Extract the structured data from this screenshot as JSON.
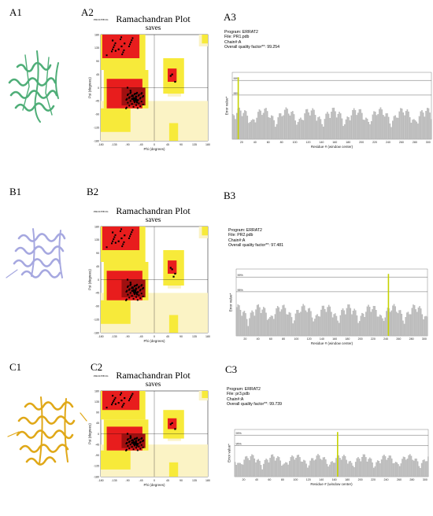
{
  "figure": {
    "rows": [
      {
        "protein_label": "A1",
        "rama_label": "A2",
        "errat_label": "A3",
        "protein_color": "#4fae78",
        "rama": {
          "procheck": "PROCHECK",
          "title": "Ramachandran Plot",
          "subtitle": "saves",
          "xlabel": "Phi (degrees)",
          "ylabel": "Psi (degrees)"
        },
        "errat": {
          "program": "Program: ERRAT2",
          "file": "File: PR1.pdb",
          "chain": "Chain#:A",
          "quality": "Overall quality factor**: 99.254",
          "ylabel": "Error value*",
          "xlabel": "Residue # (window center)",
          "level_high": "99%",
          "level_low": "95%"
        }
      },
      {
        "protein_label": "B1",
        "rama_label": "B2",
        "errat_label": "B3",
        "protein_color": "#a6a8e0",
        "rama": {
          "procheck": "PROCHECK",
          "title": "Ramachandran Plot",
          "subtitle": "saves",
          "xlabel": "Phi (degrees)",
          "ylabel": "Psi (degrees)"
        },
        "errat": {
          "program": "Program: ERRAT2",
          "file": "File: PR2.pdb",
          "chain": "Chain#:A",
          "quality": "Overall quality factor**: 97.481",
          "ylabel": "Error value*",
          "xlabel": "Residue # (window center)",
          "level_high": "99%",
          "level_low": "95%"
        }
      },
      {
        "protein_label": "C1",
        "rama_label": "C2",
        "errat_label": "C3",
        "protein_color": "#e0a818",
        "rama": {
          "procheck": "PROCHECK",
          "title": "Ramachandran Plot",
          "subtitle": "saves",
          "xlabel": "Phi (degrees)",
          "ylabel": "Psi (degrees)"
        },
        "errat": {
          "program": "Program: ERRAT2",
          "file": "File: pr3.pdb",
          "chain": "Chain#:A",
          "quality": "Overall quality factor**: 99.739",
          "ylabel": "Error value*",
          "xlabel": "Residue # (window center)",
          "level_high": "99%",
          "level_low": "95%"
        }
      }
    ]
  },
  "chart_data": [
    {
      "type": "scatter",
      "title": "Ramachandran Plot",
      "subtitle": "saves",
      "xlabel": "Phi (degrees)",
      "ylabel": "Psi (degrees)",
      "xlim": [
        -180,
        180
      ],
      "ylim": [
        -180,
        180
      ],
      "xticks": [
        -180,
        -135,
        -90,
        -45,
        0,
        45,
        90,
        135,
        180
      ],
      "yticks": [
        180,
        135,
        90,
        45,
        0,
        -45,
        -90,
        -135,
        -180
      ],
      "series": [
        {
          "x": [
            -65,
            -60,
            -70,
            -55,
            -75,
            -62,
            -58,
            -68,
            -64,
            -72,
            -120,
            -110,
            -130,
            -100,
            -140,
            -60,
            55,
            60,
            70,
            -80,
            -90,
            -66,
            -61,
            -63,
            -57
          ],
          "y": [
            -40,
            -45,
            -35,
            -42,
            -38,
            -30,
            -50,
            -44,
            -41,
            -28,
            130,
            140,
            125,
            150,
            160,
            -20,
            40,
            45,
            20,
            -10,
            0,
            -47,
            -39,
            -36,
            -43
          ]
        }
      ]
    },
    {
      "type": "scatter",
      "title": "Ramachandran Plot",
      "subtitle": "saves",
      "xlabel": "Phi (degrees)",
      "ylabel": "Psi (degrees)",
      "xlim": [
        -180,
        180
      ],
      "ylim": [
        -180,
        180
      ],
      "xticks": [
        -180,
        -135,
        -90,
        -45,
        0,
        45,
        90,
        135,
        180
      ],
      "yticks": [
        180,
        135,
        90,
        45,
        0,
        -45,
        -90,
        -135,
        -180
      ],
      "series": [
        {
          "x": [
            -65,
            -60,
            -70,
            -55,
            -75,
            -62,
            -58,
            -68,
            -64,
            -72,
            -120,
            -110,
            -130,
            -100,
            -140,
            -60,
            55,
            60,
            70,
            -80,
            -90,
            -66,
            65,
            -63,
            -57
          ],
          "y": [
            -40,
            -45,
            -35,
            -42,
            -38,
            -30,
            -50,
            -44,
            -41,
            -28,
            130,
            140,
            125,
            150,
            160,
            -20,
            40,
            35,
            20,
            -10,
            0,
            -47,
            10,
            -36,
            -43
          ]
        }
      ]
    },
    {
      "type": "scatter",
      "title": "Ramachandran Plot",
      "subtitle": "saves",
      "xlabel": "Phi (degrees)",
      "ylabel": "Psi (degrees)",
      "xlim": [
        -180,
        180
      ],
      "ylim": [
        -180,
        180
      ],
      "xticks": [
        -180,
        -135,
        -90,
        -45,
        0,
        45,
        90,
        135,
        180
      ],
      "yticks": [
        180,
        135,
        90,
        45,
        0,
        -45,
        -90,
        -135,
        -180
      ],
      "series": [
        {
          "x": [
            -65,
            -60,
            -70,
            -55,
            -75,
            -62,
            -58,
            -68,
            -64,
            -72,
            -120,
            -110,
            -130,
            -100,
            -140,
            -60,
            55,
            60,
            70,
            -80,
            -90,
            -66,
            -61,
            -63,
            -57
          ],
          "y": [
            -40,
            -45,
            -35,
            -42,
            -38,
            -30,
            -50,
            -44,
            -41,
            -28,
            130,
            140,
            125,
            150,
            160,
            -20,
            40,
            45,
            20,
            -10,
            0,
            -47,
            -39,
            -36,
            -43
          ]
        }
      ]
    },
    {
      "type": "bar",
      "title": "Overall quality factor**: 99.254",
      "xlabel": "Residue # (window center)",
      "ylabel": "Error value*",
      "xlim": [
        6,
        305
      ],
      "xticks": [
        20,
        40,
        60,
        80,
        100,
        120,
        140,
        160,
        180,
        200,
        220,
        240,
        260,
        280,
        300
      ],
      "level_lines": [
        "99%",
        "95%"
      ],
      "highlight_residue": 15
    },
    {
      "type": "bar",
      "title": "Overall quality factor**: 97.481",
      "xlabel": "Residue # (window center)",
      "ylabel": "Error value*",
      "xlim": [
        6,
        305
      ],
      "xticks": [
        20,
        40,
        60,
        80,
        100,
        120,
        140,
        160,
        180,
        200,
        220,
        240,
        260,
        280,
        300
      ],
      "level_lines": [
        "99%",
        "95%"
      ],
      "highlight_residue": 244
    },
    {
      "type": "bar",
      "title": "Overall quality factor**: 99.739",
      "xlabel": "Residue # (window center)",
      "ylabel": "Error value*",
      "xlim": [
        6,
        305
      ],
      "xticks": [
        20,
        40,
        60,
        80,
        100,
        120,
        140,
        160,
        180,
        200,
        220,
        240,
        260,
        280,
        300
      ],
      "level_lines": [
        "99%",
        "95%"
      ],
      "highlight_residue": 165
    }
  ]
}
